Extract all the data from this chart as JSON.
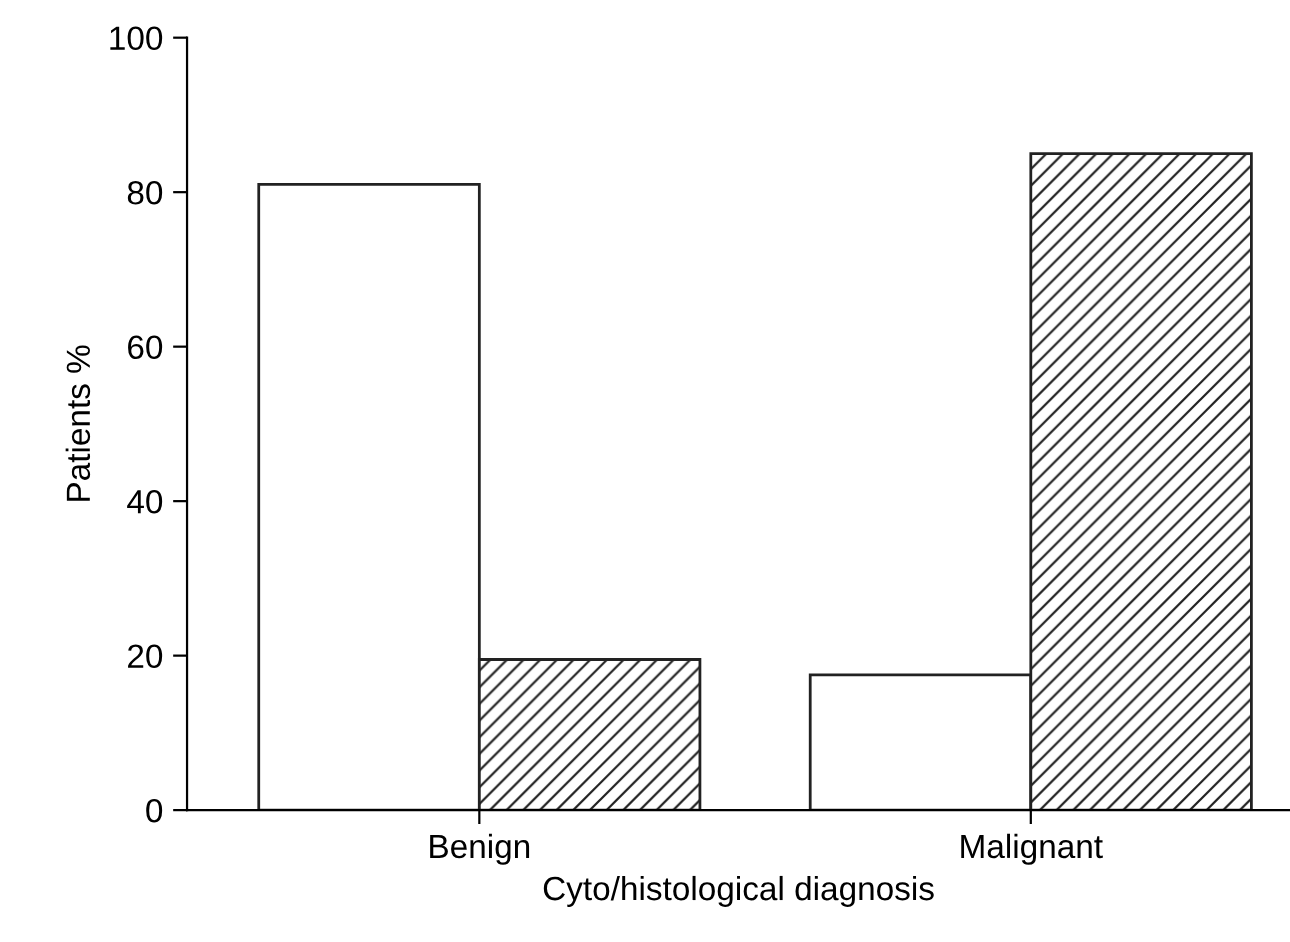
{
  "chart_data": {
    "type": "bar",
    "xlabel": "Cyto/histological diagnosis",
    "ylabel": "Patients %",
    "categories": [
      "Benign",
      "Malignant"
    ],
    "series": [
      {
        "color": "#ffffff",
        "values": [
          81,
          17.5
        ]
      },
      {
        "color": "#222222",
        "values": [
          19.5,
          85
        ]
      }
    ],
    "ylim": [
      0,
      100
    ],
    "yticks": [
      0,
      20,
      40,
      60,
      80,
      100
    ],
    "grid": false,
    "legend": false
  }
}
